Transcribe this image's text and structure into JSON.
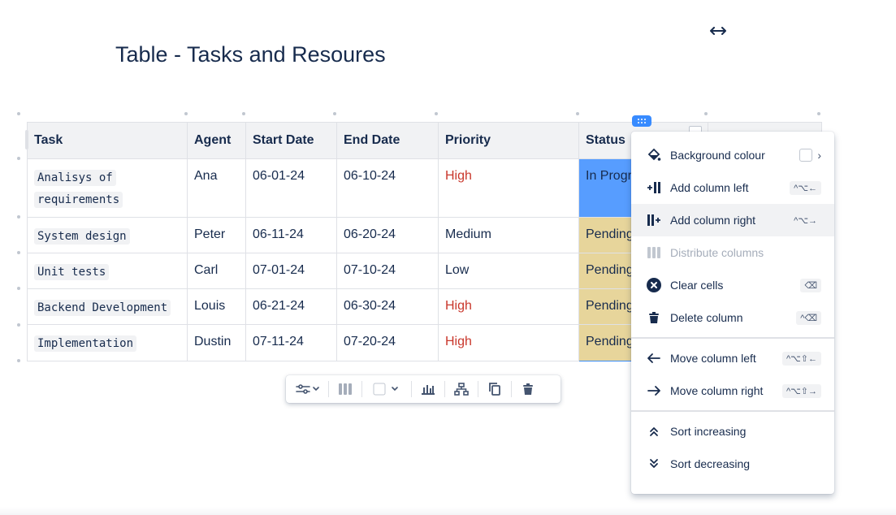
{
  "page": {
    "title": "Table - Tasks and Resoures"
  },
  "table": {
    "headers": [
      "Task",
      "Agent",
      "Start Date",
      "End Date",
      "Priority",
      "Status"
    ],
    "rows": [
      {
        "task": "Analisys of requirements",
        "agent": "Ana",
        "start": "06-01-24",
        "end": "06-10-24",
        "priority": "High",
        "status": "In Progress"
      },
      {
        "task": "System design",
        "agent": "Peter",
        "start": "06-11-24",
        "end": "06-20-24",
        "priority": "Medium",
        "status": "Pending"
      },
      {
        "task": "Unit tests",
        "agent": "Carl",
        "start": "07-01-24",
        "end": "07-10-24",
        "priority": "Low",
        "status": "Pending"
      },
      {
        "task": "Backend Development",
        "agent": "Louis",
        "start": "06-21-24",
        "end": "06-30-24",
        "priority": "High",
        "status": "Pending"
      },
      {
        "task": "Implementation",
        "agent": "Dustin",
        "start": "07-11-24",
        "end": "07-20-24",
        "priority": "High",
        "status": "Pending"
      }
    ],
    "task_line_1": "Analisys of",
    "task_line_2": "requirements",
    "status_visible": [
      "In Progr",
      "Pending",
      "Pending",
      "Pending",
      "Pending"
    ]
  },
  "colors": {
    "priority_high": "#c9372c",
    "status_in_progress": "#579dff",
    "status_pending": "#e7d59b",
    "selection": "#388bff"
  },
  "menu": {
    "items": [
      {
        "label": "Background colour",
        "icon": "paint-bucket-icon"
      },
      {
        "label": "Add column left",
        "icon": "add-column-left-icon",
        "shortcut": "^⌥←"
      },
      {
        "label": "Add column right",
        "icon": "add-column-right-icon",
        "shortcut": "^⌥→"
      },
      {
        "label": "Distribute columns",
        "icon": "distribute-columns-icon",
        "disabled": true
      },
      {
        "label": "Clear cells",
        "icon": "clear-cells-icon",
        "shortcut": "⌫"
      },
      {
        "label": "Delete column",
        "icon": "trash-icon",
        "shortcut": "^⌫"
      },
      {
        "label": "Move column left",
        "icon": "arrow-left-icon",
        "shortcut": "^⌥⇧←"
      },
      {
        "label": "Move column right",
        "icon": "arrow-right-icon",
        "shortcut": "^⌥⇧→"
      },
      {
        "label": "Sort increasing",
        "icon": "sort-increasing-icon"
      },
      {
        "label": "Sort decreasing",
        "icon": "sort-decreasing-icon"
      }
    ]
  },
  "toolbar": {
    "icons": [
      "table-options-icon",
      "column-layout-icon",
      "cell-background-icon",
      "chart-icon",
      "hierarchy-icon",
      "copy-icon",
      "delete-icon"
    ]
  }
}
